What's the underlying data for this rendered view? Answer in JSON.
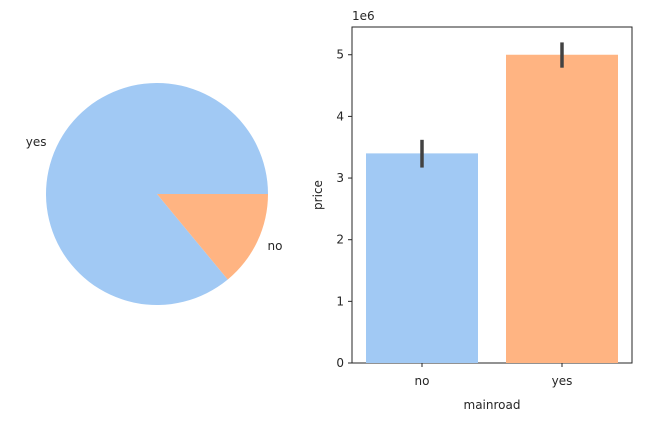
{
  "chart_data": [
    {
      "type": "pie",
      "slices": [
        {
          "label": "yes",
          "value": 0.86,
          "color": "#a1c9f4"
        },
        {
          "label": "no",
          "value": 0.14,
          "color": "#ffb482"
        }
      ],
      "title": ""
    },
    {
      "type": "bar",
      "categories": [
        "no",
        "yes"
      ],
      "values": [
        3.4,
        5.0
      ],
      "error_bars": [
        [
          3.17,
          3.62
        ],
        [
          4.79,
          5.2
        ]
      ],
      "colors": [
        "#a1c9f4",
        "#ffb482"
      ],
      "xlabel": "mainroad",
      "ylabel": "price",
      "ylim": [
        0,
        5.45
      ],
      "yticks": [
        "0",
        "1",
        "2",
        "3",
        "4",
        "5"
      ],
      "yscale_label": "1e6",
      "grid": false
    }
  ]
}
